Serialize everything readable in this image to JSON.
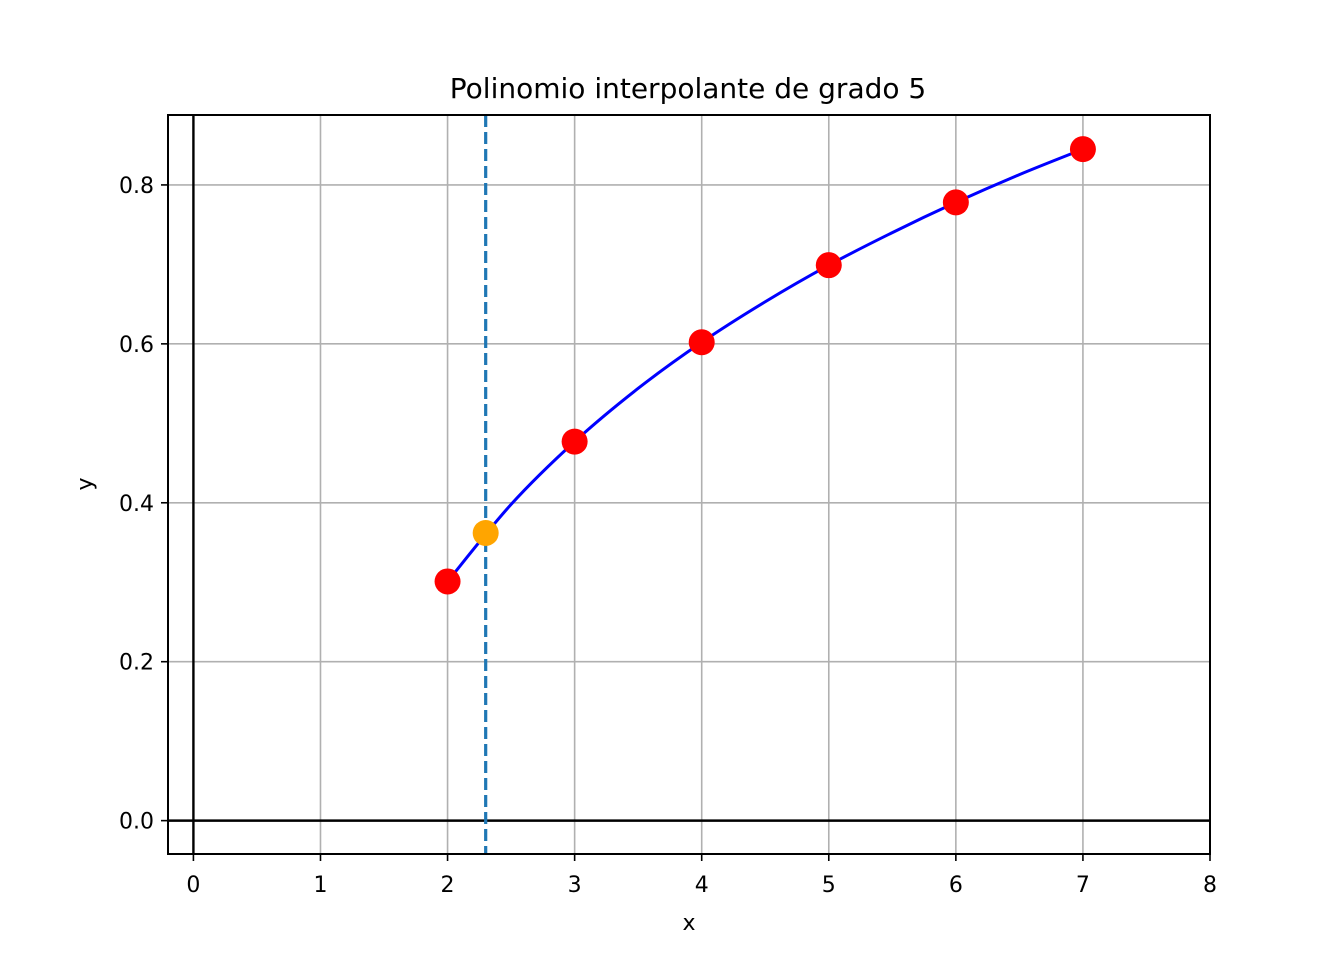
{
  "chart_data": {
    "type": "line",
    "title": "Polinomio interpolante de grado 5",
    "xlabel": "x",
    "ylabel": "y",
    "xlim": [
      -0.2,
      8.0
    ],
    "ylim": [
      -0.042,
      0.888
    ],
    "grid": true,
    "x_ticks": [
      0,
      1,
      2,
      3,
      4,
      5,
      6,
      7,
      8
    ],
    "y_ticks": [
      0.0,
      0.2,
      0.4,
      0.6,
      0.8
    ],
    "x_tick_labels": [
      "0",
      "1",
      "2",
      "3",
      "4",
      "5",
      "6",
      "7",
      "8"
    ],
    "y_tick_labels": [
      "0.0",
      "0.2",
      "0.4",
      "0.6",
      "0.8"
    ],
    "series": [
      {
        "kind": "curve",
        "color": "#0000ff",
        "x": [
          2.0,
          2.5,
          3.0,
          3.5,
          4.0,
          4.5,
          5.0,
          5.5,
          6.0,
          6.5,
          7.0
        ],
        "y": [
          0.301,
          0.398,
          0.477,
          0.544,
          0.602,
          0.653,
          0.699,
          0.74,
          0.778,
          0.813,
          0.845
        ]
      },
      {
        "kind": "points",
        "color": "#ff0000",
        "x": [
          2,
          3,
          4,
          5,
          6,
          7
        ],
        "y": [
          0.301,
          0.477,
          0.602,
          0.699,
          0.778,
          0.845
        ]
      },
      {
        "kind": "points",
        "color": "#ffa500",
        "x": [
          2.3
        ],
        "y": [
          0.362
        ]
      }
    ],
    "vline": {
      "x": 2.3,
      "color": "#1f77b4",
      "style": "dashed"
    },
    "hline": {
      "y": 0.0,
      "color": "#000000"
    },
    "vline_axis": {
      "x": 0,
      "color": "#000000"
    }
  }
}
